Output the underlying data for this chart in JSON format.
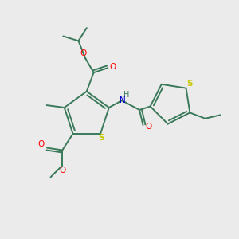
{
  "bg_color": "#EBEBEB",
  "bond_color": "#3a7a5a",
  "colors": {
    "S": "#c8c800",
    "O": "#ff0000",
    "N": "#0000cc",
    "C": "#3a7a5a"
  },
  "figsize": [
    3.0,
    3.0
  ],
  "dpi": 100
}
